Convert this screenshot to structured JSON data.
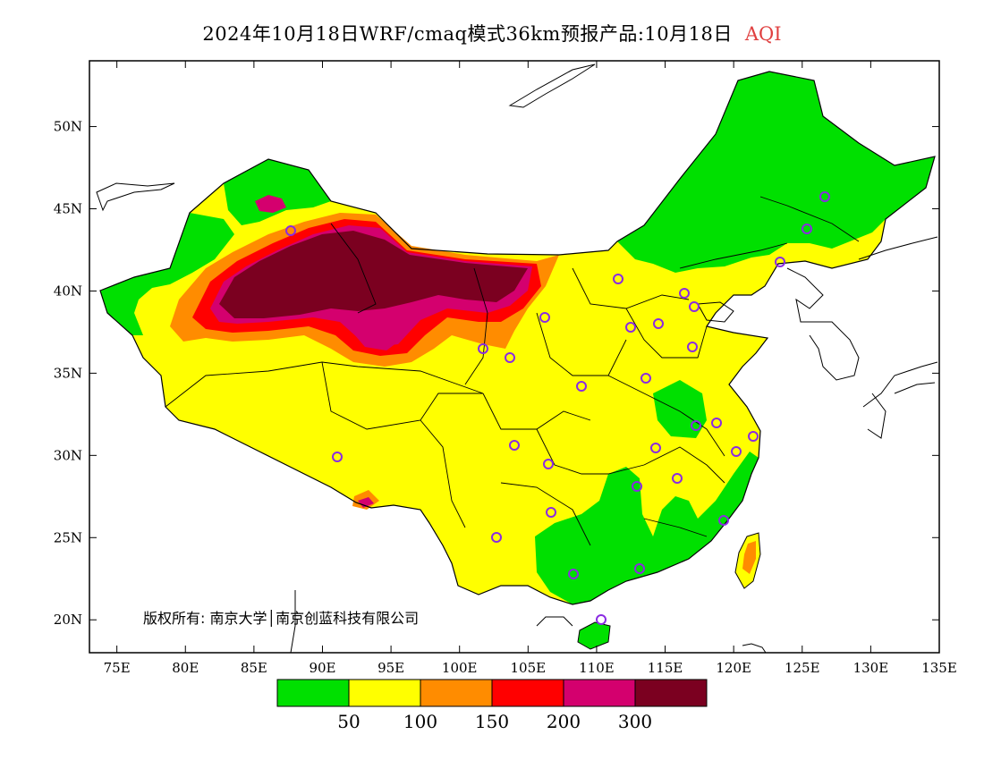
{
  "title": {
    "main": "2024年10月18日WRF/cmaq模式36km预报产品:10月18日",
    "variable": "AQI",
    "variable_color": "#e04040"
  },
  "map": {
    "lon_range": [
      73,
      135
    ],
    "lat_range": [
      18,
      54
    ],
    "x_ticks": [
      "75E",
      "80E",
      "85E",
      "90E",
      "95E",
      "100E",
      "105E",
      "110E",
      "115E",
      "120E",
      "125E",
      "130E",
      "135E"
    ],
    "x_tick_values": [
      75,
      80,
      85,
      90,
      95,
      100,
      105,
      110,
      115,
      120,
      125,
      130,
      135
    ],
    "y_ticks": [
      "20N",
      "25N",
      "30N",
      "35N",
      "40N",
      "45N",
      "50N"
    ],
    "y_tick_values": [
      20,
      25,
      30,
      35,
      40,
      45,
      50
    ],
    "copyright": "版权所有: 南京大学│南京创蓝科技有限公司"
  },
  "legend": {
    "colors": [
      "#00e000",
      "#ffff00",
      "#ff8c00",
      "#ff0000",
      "#d4006e",
      "#7b0020"
    ],
    "labels": [
      "50",
      "100",
      "150",
      "200",
      "300"
    ]
  },
  "stations_count_note": "",
  "colors": {
    "good": "#00e000",
    "moderate": "#ffff00",
    "usg": "#ff8c00",
    "unhealthy": "#ff0000",
    "very_unhealthy": "#d4006e",
    "hazardous": "#7b0020",
    "station_ring": "#8a2be2"
  }
}
